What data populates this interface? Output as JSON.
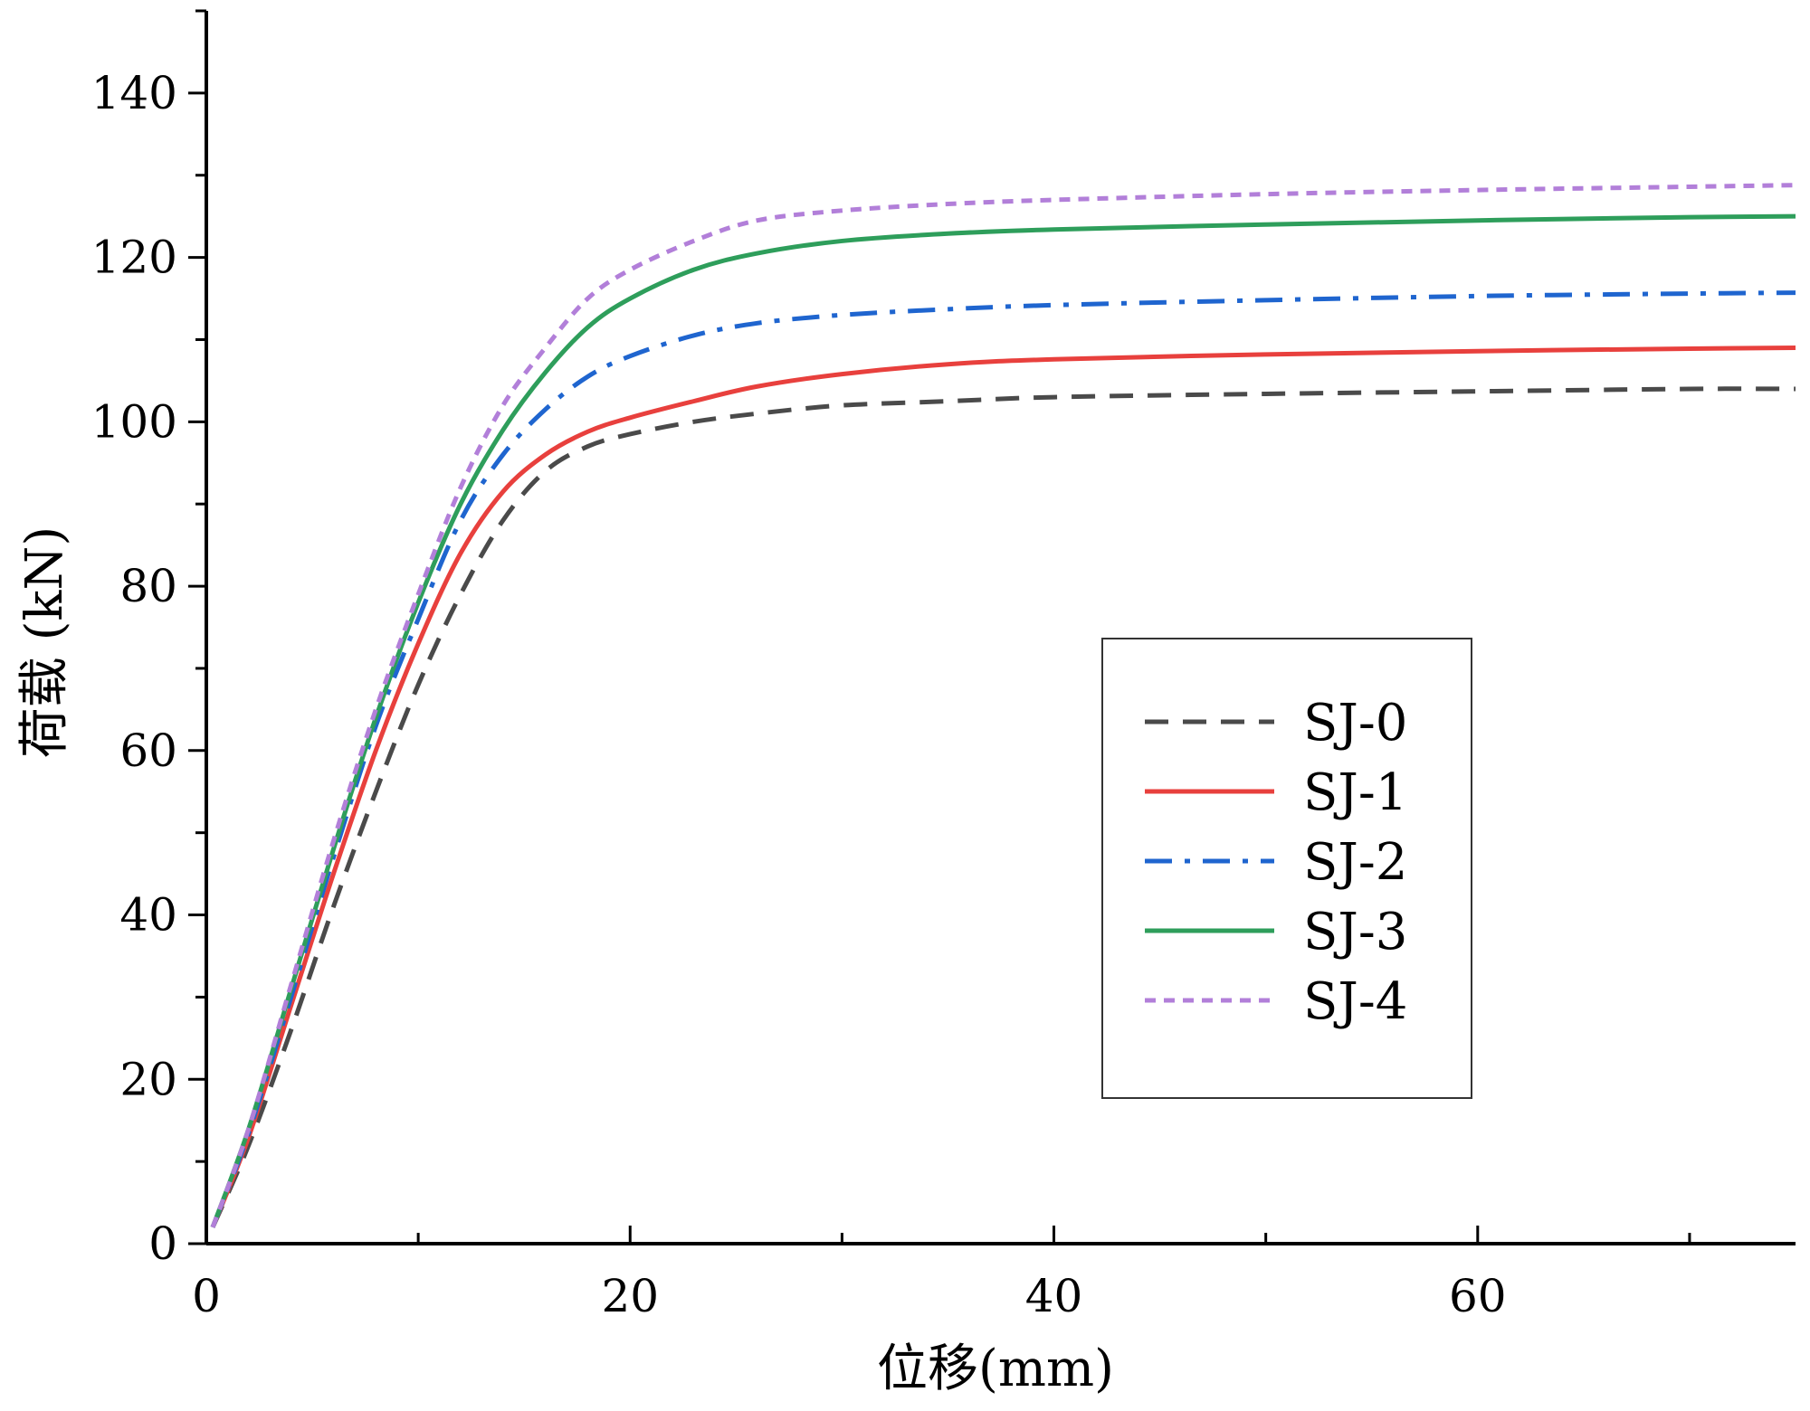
{
  "chart_data": {
    "type": "line",
    "title": "",
    "xlabel": "位移(mm)",
    "ylabel": "荷载 (kN)",
    "xlim": [
      0,
      75
    ],
    "ylim": [
      0,
      150
    ],
    "x_ticks": [
      0,
      20,
      40,
      60
    ],
    "y_ticks": [
      0,
      20,
      40,
      60,
      80,
      100,
      120,
      140
    ],
    "grid": false,
    "legend_position": "center-right",
    "series": [
      {
        "name": "SJ-0",
        "color": "#4a4a4a",
        "dash": "dashed",
        "points": [
          [
            0.3,
            2
          ],
          [
            2,
            12
          ],
          [
            4,
            26
          ],
          [
            6,
            41
          ],
          [
            8,
            55
          ],
          [
            10,
            68
          ],
          [
            12,
            79
          ],
          [
            14,
            88
          ],
          [
            16,
            94
          ],
          [
            18,
            97
          ],
          [
            20,
            98.5
          ],
          [
            23,
            100
          ],
          [
            26,
            101
          ],
          [
            30,
            102
          ],
          [
            35,
            102.5
          ],
          [
            40,
            103
          ],
          [
            50,
            103.4
          ],
          [
            60,
            103.7
          ],
          [
            70,
            104
          ],
          [
            75,
            104
          ]
        ]
      },
      {
        "name": "SJ-1",
        "color": "#e8403d",
        "dash": "solid",
        "points": [
          [
            0.3,
            2
          ],
          [
            2,
            13
          ],
          [
            4,
            29
          ],
          [
            6,
            45
          ],
          [
            8,
            60
          ],
          [
            10,
            73
          ],
          [
            12,
            84
          ],
          [
            14,
            91.5
          ],
          [
            16,
            96
          ],
          [
            18,
            98.8
          ],
          [
            20,
            100.5
          ],
          [
            23,
            102.5
          ],
          [
            26,
            104.3
          ],
          [
            30,
            105.8
          ],
          [
            35,
            107
          ],
          [
            40,
            107.6
          ],
          [
            50,
            108.2
          ],
          [
            60,
            108.6
          ],
          [
            70,
            108.9
          ],
          [
            75,
            109
          ]
        ]
      },
      {
        "name": "SJ-2",
        "color": "#1f65cf",
        "dash": "dashdot",
        "points": [
          [
            0.3,
            2
          ],
          [
            2,
            13.5
          ],
          [
            4,
            30
          ],
          [
            6,
            47
          ],
          [
            8,
            63
          ],
          [
            10,
            76
          ],
          [
            12,
            88
          ],
          [
            14,
            96
          ],
          [
            16,
            101.5
          ],
          [
            18,
            105.5
          ],
          [
            20,
            108
          ],
          [
            23,
            110.5
          ],
          [
            26,
            112
          ],
          [
            30,
            113
          ],
          [
            35,
            113.7
          ],
          [
            40,
            114.2
          ],
          [
            50,
            114.8
          ],
          [
            60,
            115.3
          ],
          [
            70,
            115.6
          ],
          [
            75,
            115.7
          ]
        ]
      },
      {
        "name": "SJ-3",
        "color": "#2e9e5b",
        "dash": "solid",
        "points": [
          [
            0.3,
            2
          ],
          [
            2,
            14
          ],
          [
            4,
            31
          ],
          [
            6,
            48
          ],
          [
            8,
            64
          ],
          [
            10,
            78
          ],
          [
            12,
            90
          ],
          [
            14,
            99
          ],
          [
            16,
            106
          ],
          [
            18,
            111.5
          ],
          [
            20,
            115
          ],
          [
            23,
            118.5
          ],
          [
            26,
            120.5
          ],
          [
            30,
            122
          ],
          [
            35,
            122.9
          ],
          [
            40,
            123.4
          ],
          [
            50,
            124
          ],
          [
            60,
            124.5
          ],
          [
            70,
            124.9
          ],
          [
            75,
            125
          ]
        ]
      },
      {
        "name": "SJ-4",
        "color": "#b27fd9",
        "dash": "dotted",
        "points": [
          [
            0.3,
            2
          ],
          [
            2,
            14
          ],
          [
            4,
            31.5
          ],
          [
            6,
            49
          ],
          [
            8,
            65
          ],
          [
            10,
            79
          ],
          [
            12,
            92
          ],
          [
            14,
            102
          ],
          [
            16,
            109
          ],
          [
            18,
            115
          ],
          [
            20,
            118.5
          ],
          [
            23,
            122
          ],
          [
            26,
            124.5
          ],
          [
            30,
            125.7
          ],
          [
            35,
            126.5
          ],
          [
            40,
            127
          ],
          [
            50,
            127.7
          ],
          [
            60,
            128.2
          ],
          [
            70,
            128.6
          ],
          [
            75,
            128.8
          ]
        ]
      }
    ]
  }
}
